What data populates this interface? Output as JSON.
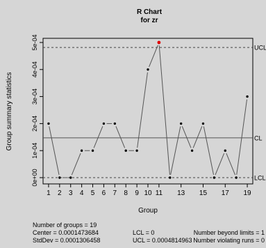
{
  "chart_data": {
    "type": "line",
    "title": "R Chart",
    "subtitle": "for zr",
    "xlabel": "Group",
    "ylabel": "Group summary statistics",
    "xlim": [
      0.5,
      19.5
    ],
    "ylim": [
      0,
      0.0005
    ],
    "x_ticks": [
      1,
      2,
      3,
      4,
      5,
      6,
      7,
      8,
      9,
      10,
      11,
      13,
      15,
      17,
      19
    ],
    "y_ticks": [
      {
        "value": 0,
        "label": "0e+00"
      },
      {
        "value": 0.0001,
        "label": "1e-04"
      },
      {
        "value": 0.0002,
        "label": "2e-04"
      },
      {
        "value": 0.0003,
        "label": "3e-04"
      },
      {
        "value": 0.0004,
        "label": "4e-04"
      },
      {
        "value": 0.0005,
        "label": "5e-04"
      }
    ],
    "x": [
      1,
      2,
      3,
      4,
      5,
      6,
      7,
      8,
      9,
      10,
      11,
      12,
      13,
      14,
      15,
      16,
      17,
      18,
      19
    ],
    "values": [
      0.0002,
      0,
      0,
      0.0001,
      0.0001,
      0.0002,
      0.0002,
      0.0001,
      0.0001,
      0.0004,
      0.0005,
      0,
      0.0002,
      0.0001,
      0.0002,
      0,
      0.0001,
      0,
      0.0003
    ],
    "beyond_limits_index": [
      11
    ],
    "control_limits": [
      {
        "label": "UCL",
        "value": 0.0004814963,
        "style": "dashed"
      },
      {
        "label": "CL",
        "value": 0.0001473684,
        "style": "solid"
      },
      {
        "label": "LCL",
        "value": 0,
        "style": "dashed"
      }
    ],
    "stats": {
      "groups": "Number of groups = 19",
      "center": "Center = 0.0001473684",
      "stddev": "StdDev = 0.0001306458",
      "lcl": "LCL = 0",
      "ucl": "UCL = 0.0004814963",
      "beyond": "Number beyond limits = 1",
      "violating": "Number violating runs = 0"
    },
    "colors": {
      "background": "#d6d6d6",
      "point": "#000000",
      "violation": "#e00000",
      "line": "#555555"
    }
  }
}
